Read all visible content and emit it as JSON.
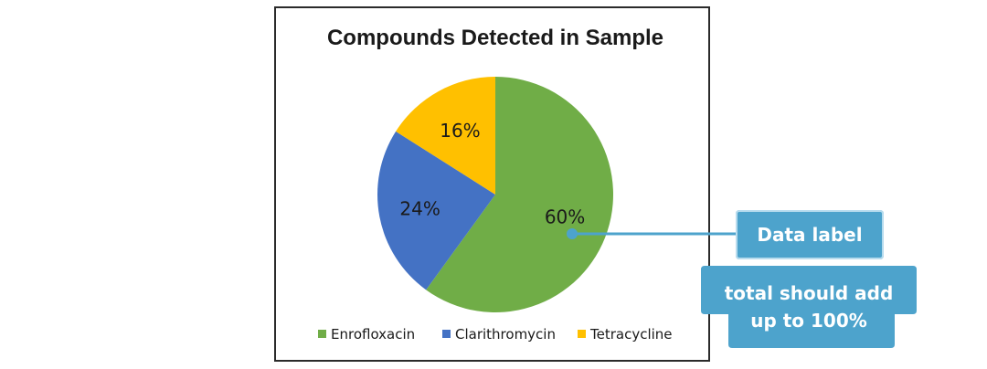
{
  "chart_data": {
    "type": "pie",
    "title": "Compounds Detected in Sample",
    "categories": [
      "Enrofloxacin",
      "Clarithromycin",
      "Tetracycline"
    ],
    "values": [
      60,
      24,
      16
    ],
    "labels": [
      "60%",
      "24%",
      "16%"
    ],
    "colors": [
      "#70ad47",
      "#4472c4",
      "#ffc000"
    ],
    "legend_position": "bottom",
    "start_angle": "12 o'clock, clockwise"
  },
  "annotations": {
    "data_label_callout": "Data label",
    "total_note": "total should add\nup to 100%",
    "callout_color": "#4da3cc"
  }
}
